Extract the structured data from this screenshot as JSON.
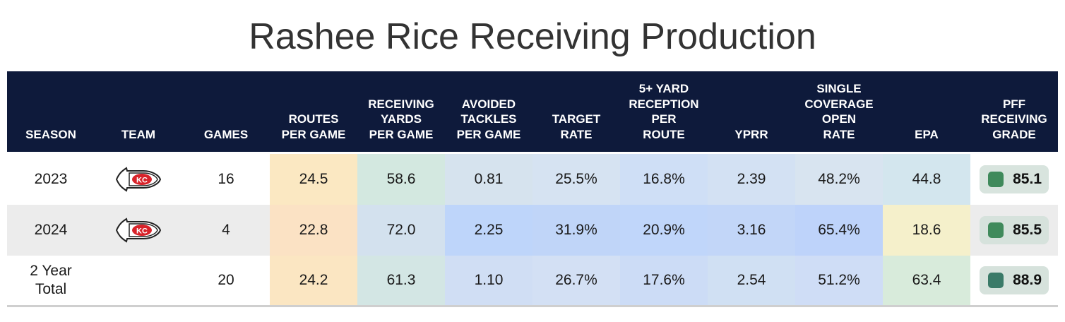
{
  "title": "Rashee Rice Receiving Production",
  "headers": [
    "SEASON",
    "TEAM",
    "GAMES",
    "ROUTES\nPER GAME",
    "RECEIVING\nYARDS\nPER GAME",
    "AVOIDED\nTACKLES\nPER GAME",
    "TARGET\nRATE",
    "5+ YARD\nRECEPTION\nPER\nROUTE",
    "YPRR",
    "SINGLE\nCOVERAGE\nOPEN\nRATE",
    "EPA",
    "PFF\nRECEIVING\nGRADE"
  ],
  "rows": [
    {
      "season": "2023",
      "team_logo": "chiefs-logo",
      "games": "16",
      "routes": "24.5",
      "rec_yards": "58.6",
      "avoided": "0.81",
      "target": "25.5%",
      "five_yard": "16.8%",
      "yprr": "2.39",
      "single_cov": "48.2%",
      "epa": "44.8",
      "grade": "85.1"
    },
    {
      "season": "2024",
      "team_logo": "chiefs-logo",
      "games": "4",
      "routes": "22.8",
      "rec_yards": "72.0",
      "avoided": "2.25",
      "target": "31.9%",
      "five_yard": "20.9%",
      "yprr": "3.16",
      "single_cov": "65.4%",
      "epa": "18.6",
      "grade": "85.5"
    },
    {
      "season": "2 Year\nTotal",
      "team_logo": "",
      "games": "20",
      "routes": "24.2",
      "rec_yards": "61.3",
      "avoided": "1.10",
      "target": "26.7%",
      "five_yard": "17.6%",
      "yprr": "2.54",
      "single_cov": "51.2%",
      "epa": "63.4",
      "grade": "88.9"
    }
  ],
  "colors": {
    "header_bg": "#0e1a3b",
    "row1": {
      "routes": "#fbe8c2",
      "rec_yards": "#d3e8e0",
      "avoided": "#d6e3ee",
      "target": "#d6e3f2",
      "five_yard": "#cfdff6",
      "yprr": "#d3e1f3",
      "single_cov": "#d8e4f0",
      "epa": "#d3e6ee"
    },
    "row2": {
      "routes": "#fbe2c4",
      "rec_yards": "#d3e1ee",
      "avoided": "#bed5fa",
      "target": "#c0d5f8",
      "five_yard": "#c0d6fa",
      "yprr": "#c2d6f8",
      "single_cov": "#bed3fa",
      "epa": "#f5f0cb"
    },
    "row3": {
      "routes": "#fbe6c2",
      "rec_yards": "#d3e6e4",
      "avoided": "#d0def4",
      "target": "#d3e0f4",
      "five_yard": "#ccdcf6",
      "yprr": "#d0e0f3",
      "single_cov": "#cfddf6",
      "epa": "#d8ebdb"
    },
    "grade_box": "#d8e4de",
    "grade_dots": [
      "#3f8a5b",
      "#3f8a5b",
      "#3a7a68"
    ]
  }
}
